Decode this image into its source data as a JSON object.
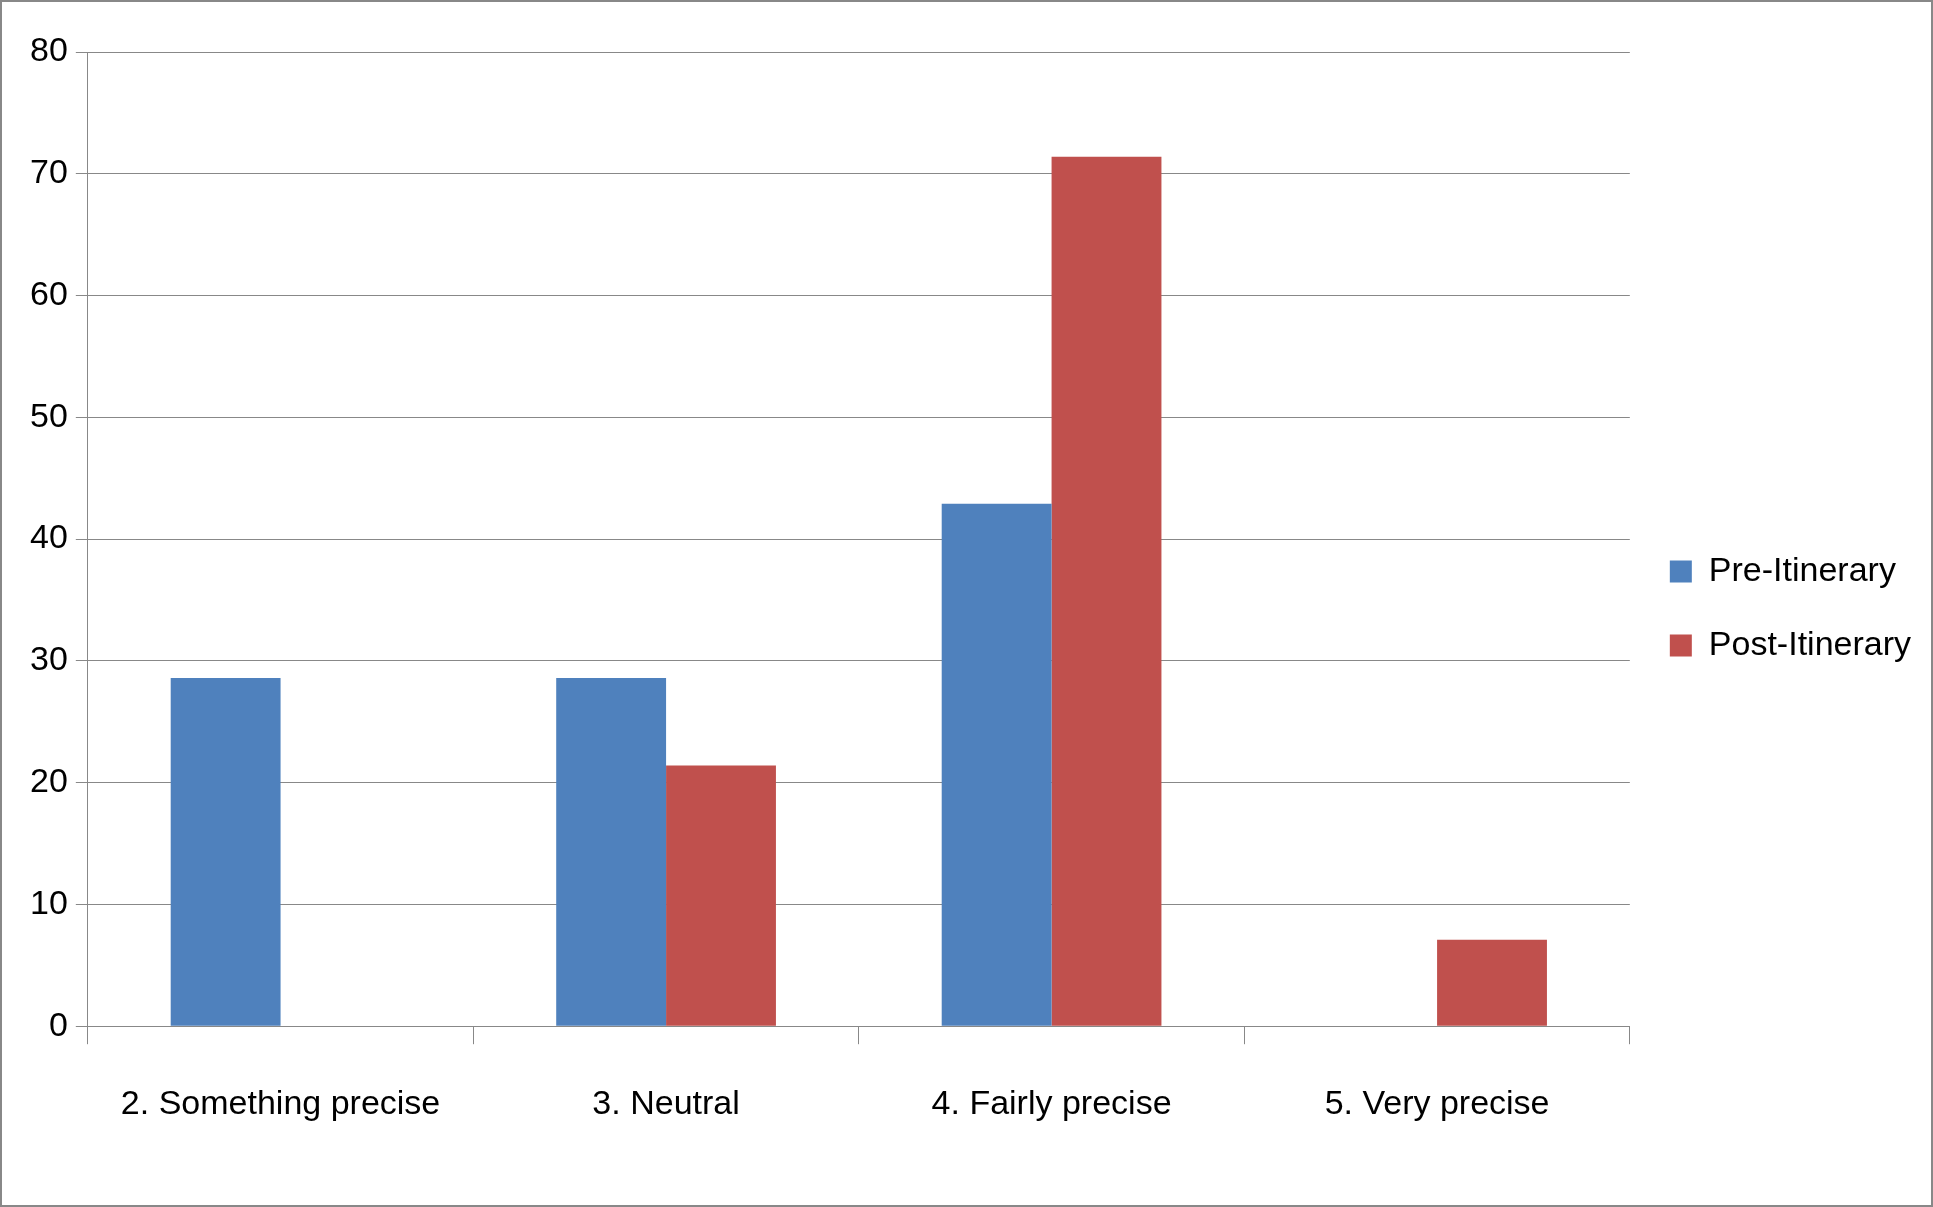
{
  "chart_data": {
    "type": "bar",
    "categories": [
      "2. Something precise",
      "3. Neutral",
      "4. Fairly precise",
      "5. Very precise"
    ],
    "series": [
      {
        "name": "Pre-Itinerary",
        "color": "#4f81bd",
        "values": [
          28.6,
          28.6,
          42.9,
          0
        ]
      },
      {
        "name": "Post-Itinerary",
        "color": "#c0504d",
        "values": [
          0,
          21.4,
          71.4,
          7.1
        ]
      }
    ],
    "ylim": [
      0,
      80
    ],
    "yticks": [
      0,
      10,
      20,
      30,
      40,
      50,
      60,
      70,
      80
    ],
    "grid": "y",
    "legend": "right"
  }
}
